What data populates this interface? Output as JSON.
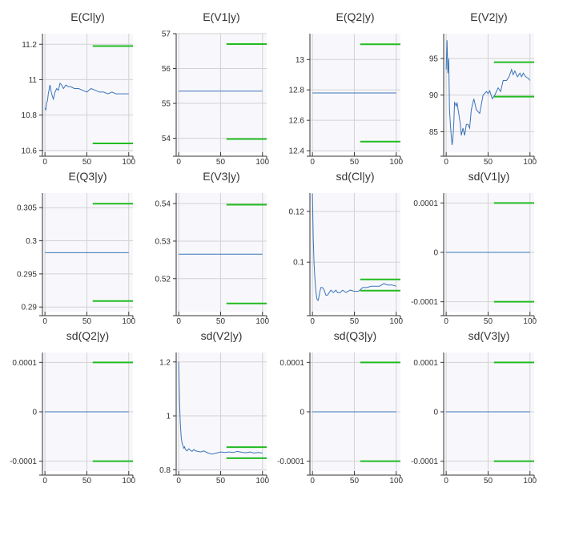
{
  "chart_data": [
    {
      "type": "line",
      "title": "E(Cl|y)",
      "xlim": [
        -3,
        105
      ],
      "ylim": [
        10.59,
        11.26
      ],
      "xticks": [
        {
          "v": 0,
          "t": "0"
        },
        {
          "v": 50,
          "t": "50"
        },
        {
          "v": 100,
          "t": "100"
        }
      ],
      "yticks": [
        {
          "v": 10.6,
          "t": "10.6"
        },
        {
          "v": 10.8,
          "t": "10.8"
        },
        {
          "v": 11,
          "t": "11"
        },
        {
          "v": 11.2,
          "t": "11.2"
        }
      ],
      "series": [
        {
          "x": [
            0,
            1,
            2,
            3,
            4,
            6,
            8,
            10,
            12,
            14,
            16,
            18,
            20,
            22,
            25,
            28,
            31,
            35,
            40,
            45,
            50,
            55,
            60,
            65,
            70,
            75,
            80,
            85,
            90,
            95,
            100
          ],
          "y": [
            10.84,
            10.83,
            10.87,
            10.88,
            10.92,
            10.97,
            10.92,
            10.89,
            10.93,
            10.95,
            10.94,
            10.98,
            10.97,
            10.95,
            10.97,
            10.96,
            10.96,
            10.95,
            10.95,
            10.94,
            10.93,
            10.95,
            10.94,
            10.93,
            10.93,
            10.92,
            10.93,
            10.92,
            10.92,
            10.92,
            10.92
          ]
        }
      ],
      "hlines": [
        {
          "x": [
            57,
            105
          ],
          "y": 11.19
        },
        {
          "x": [
            57,
            105
          ],
          "y": 10.64
        }
      ]
    },
    {
      "type": "line",
      "title": "E(V1|y)",
      "xlim": [
        -3,
        105
      ],
      "ylim": [
        53.6,
        57.0
      ],
      "xticks": [
        {
          "v": 0,
          "t": "0"
        },
        {
          "v": 50,
          "t": "50"
        },
        {
          "v": 100,
          "t": "100"
        }
      ],
      "yticks": [
        {
          "v": 54,
          "t": "54"
        },
        {
          "v": 55,
          "t": "55"
        },
        {
          "v": 56,
          "t": "56"
        },
        {
          "v": 57,
          "t": "57"
        }
      ],
      "series": [
        {
          "x": [
            0,
            100
          ],
          "y": [
            55.35,
            55.35
          ]
        }
      ],
      "hlines": [
        {
          "x": [
            57,
            105
          ],
          "y": 56.7
        },
        {
          "x": [
            57,
            105
          ],
          "y": 53.98
        }
      ]
    },
    {
      "type": "line",
      "title": "E(Q2|y)",
      "xlim": [
        -3,
        105
      ],
      "ylim": [
        12.39,
        13.17
      ],
      "xticks": [
        {
          "v": 0,
          "t": "0"
        },
        {
          "v": 50,
          "t": "50"
        },
        {
          "v": 100,
          "t": "100"
        }
      ],
      "yticks": [
        {
          "v": 12.4,
          "t": "12.4"
        },
        {
          "v": 12.6,
          "t": "12.6"
        },
        {
          "v": 12.8,
          "t": "12.8"
        },
        {
          "v": 13,
          "t": "13"
        }
      ],
      "series": [
        {
          "x": [
            0,
            100
          ],
          "y": [
            12.78,
            12.78
          ]
        }
      ],
      "hlines": [
        {
          "x": [
            57,
            105
          ],
          "y": 13.1
        },
        {
          "x": [
            57,
            105
          ],
          "y": 12.46
        }
      ]
    },
    {
      "type": "line",
      "title": "E(V2|y)",
      "xlim": [
        -3,
        105
      ],
      "ylim": [
        82.2,
        98.4
      ],
      "xticks": [
        {
          "v": 0,
          "t": "0"
        },
        {
          "v": 50,
          "t": "50"
        },
        {
          "v": 100,
          "t": "100"
        }
      ],
      "yticks": [
        {
          "v": 85,
          "t": "85"
        },
        {
          "v": 90,
          "t": "90"
        },
        {
          "v": 95,
          "t": "95"
        }
      ],
      "series": [
        {
          "x": [
            0,
            1,
            2,
            3,
            4,
            5,
            6,
            7,
            8,
            9,
            10,
            11,
            12,
            13,
            15,
            17,
            18,
            20,
            22,
            24,
            26,
            28,
            30,
            33,
            36,
            40,
            44,
            48,
            50,
            52,
            55,
            58,
            62,
            65,
            68,
            72,
            75,
            78,
            80,
            82,
            85,
            88,
            90,
            92,
            95,
            98,
            100
          ],
          "y": [
            93.5,
            97.5,
            93,
            95,
            88,
            86,
            84.5,
            83.2,
            84,
            86,
            89,
            88.8,
            88.5,
            89,
            87.5,
            86,
            84.5,
            85.5,
            84.5,
            86,
            86,
            85.5,
            88,
            89.5,
            88,
            87.5,
            90,
            90.5,
            90.2,
            90.6,
            89.5,
            90,
            91,
            90.5,
            92,
            92,
            92.5,
            93.5,
            92.8,
            93.3,
            92.5,
            93,
            92.5,
            93,
            92.5,
            92.3,
            92
          ]
        }
      ],
      "hlines": [
        {
          "x": [
            57,
            105
          ],
          "y": 94.5
        },
        {
          "x": [
            57,
            105
          ],
          "y": 89.8
        }
      ]
    },
    {
      "type": "line",
      "title": "E(Q3|y)",
      "xlim": [
        -3,
        105
      ],
      "ylim": [
        0.2893,
        0.3072
      ],
      "xticks": [
        {
          "v": 0,
          "t": "0"
        },
        {
          "v": 50,
          "t": "50"
        },
        {
          "v": 100,
          "t": "100"
        }
      ],
      "yticks": [
        {
          "v": 0.29,
          "t": "0.29"
        },
        {
          "v": 0.295,
          "t": "0.295"
        },
        {
          "v": 0.3,
          "t": "0.3"
        },
        {
          "v": 0.305,
          "t": "0.305"
        }
      ],
      "series": [
        {
          "x": [
            0,
            100
          ],
          "y": [
            0.2982,
            0.2982
          ]
        }
      ],
      "hlines": [
        {
          "x": [
            57,
            105
          ],
          "y": 0.3056
        },
        {
          "x": [
            57,
            105
          ],
          "y": 0.2909
        }
      ]
    },
    {
      "type": "line",
      "title": "E(V3|y)",
      "xlim": [
        -3,
        105
      ],
      "ylim": [
        0.5112,
        0.5428
      ],
      "xticks": [
        {
          "v": 0,
          "t": "0"
        },
        {
          "v": 50,
          "t": "50"
        },
        {
          "v": 100,
          "t": "100"
        }
      ],
      "yticks": [
        {
          "v": 0.52,
          "t": "0.52"
        },
        {
          "v": 0.53,
          "t": "0.53"
        },
        {
          "v": 0.54,
          "t": "0.54"
        }
      ],
      "series": [
        {
          "x": [
            0,
            100
          ],
          "y": [
            0.5265,
            0.5265
          ]
        }
      ],
      "hlines": [
        {
          "x": [
            57,
            105
          ],
          "y": 0.5397
        },
        {
          "x": [
            57,
            105
          ],
          "y": 0.5134
        }
      ]
    },
    {
      "type": "line",
      "title": "sd(Cl|y)",
      "xlim": [
        -3,
        105
      ],
      "ylim": [
        0.0805,
        0.1272
      ],
      "xticks": [
        {
          "v": 0,
          "t": "0"
        },
        {
          "v": 50,
          "t": "50"
        },
        {
          "v": 100,
          "t": "100"
        }
      ],
      "yticks": [
        {
          "v": 0.1,
          "t": "0.1"
        },
        {
          "v": 0.12,
          "t": "0.12"
        }
      ],
      "series": [
        {
          "x": [
            0,
            1,
            2,
            3,
            4,
            5,
            6,
            7,
            8,
            10,
            12,
            14,
            16,
            18,
            20,
            22,
            25,
            28,
            30,
            33,
            36,
            40,
            45,
            50,
            55,
            60,
            65,
            70,
            75,
            80,
            85,
            90,
            95,
            100
          ],
          "y": [
            0.127,
            0.109,
            0.099,
            0.093,
            0.089,
            0.086,
            0.085,
            0.085,
            0.087,
            0.09,
            0.09,
            0.089,
            0.087,
            0.087,
            0.088,
            0.089,
            0.088,
            0.089,
            0.088,
            0.088,
            0.089,
            0.088,
            0.089,
            0.0885,
            0.0885,
            0.09,
            0.09,
            0.0905,
            0.0905,
            0.0905,
            0.0915,
            0.091,
            0.091,
            0.0905
          ]
        }
      ],
      "hlines": [
        {
          "x": [
            57,
            105
          ],
          "y": 0.0932
        },
        {
          "x": [
            57,
            105
          ],
          "y": 0.0888
        }
      ]
    },
    {
      "type": "line",
      "title": "sd(V1|y)",
      "xlim": [
        -3,
        105
      ],
      "ylim": [
        -0.00012,
        0.00012
      ],
      "xticks": [
        {
          "v": 0,
          "t": "0"
        },
        {
          "v": 50,
          "t": "50"
        },
        {
          "v": 100,
          "t": "100"
        }
      ],
      "yticks": [
        {
          "v": -0.0001,
          "t": "-0.0001"
        },
        {
          "v": 0,
          "t": "0"
        },
        {
          "v": 0.0001,
          "t": "0.0001"
        }
      ],
      "series": [
        {
          "x": [
            0,
            100
          ],
          "y": [
            0,
            0
          ]
        }
      ],
      "hlines": [
        {
          "x": [
            57,
            105
          ],
          "y": 0.0001
        },
        {
          "x": [
            57,
            105
          ],
          "y": -0.0001
        }
      ]
    },
    {
      "type": "line",
      "title": "sd(Q2|y)",
      "xlim": [
        -3,
        105
      ],
      "ylim": [
        -0.00012,
        0.00012
      ],
      "xticks": [
        {
          "v": 0,
          "t": "0"
        },
        {
          "v": 50,
          "t": "50"
        },
        {
          "v": 100,
          "t": "100"
        }
      ],
      "yticks": [
        {
          "v": -0.0001,
          "t": "-0.0001"
        },
        {
          "v": 0,
          "t": "0"
        },
        {
          "v": 0.0001,
          "t": "0.0001"
        }
      ],
      "series": [
        {
          "x": [
            0,
            100
          ],
          "y": [
            0,
            0
          ]
        }
      ],
      "hlines": [
        {
          "x": [
            57,
            105
          ],
          "y": 0.0001
        },
        {
          "x": [
            57,
            105
          ],
          "y": -0.0001
        }
      ]
    },
    {
      "type": "line",
      "title": "sd(V2|y)",
      "xlim": [
        -3,
        105
      ],
      "ylim": [
        0.795,
        1.235
      ],
      "xticks": [
        {
          "v": 0,
          "t": "0"
        },
        {
          "v": 50,
          "t": "50"
        },
        {
          "v": 100,
          "t": "100"
        }
      ],
      "yticks": [
        {
          "v": 0.8,
          "t": "0.8"
        },
        {
          "v": 1,
          "t": "1"
        },
        {
          "v": 1.2,
          "t": "1.2"
        }
      ],
      "series": [
        {
          "x": [
            0,
            1,
            2,
            3,
            4,
            5,
            6,
            7,
            8,
            10,
            12,
            14,
            16,
            18,
            20,
            23,
            26,
            30,
            35,
            40,
            45,
            50,
            55,
            60,
            65,
            70,
            75,
            80,
            85,
            90,
            95,
            100
          ],
          "y": [
            1.2,
            1.05,
            0.97,
            0.92,
            0.9,
            0.89,
            0.88,
            0.885,
            0.875,
            0.87,
            0.878,
            0.872,
            0.868,
            0.875,
            0.87,
            0.868,
            0.866,
            0.87,
            0.862,
            0.858,
            0.862,
            0.866,
            0.864,
            0.866,
            0.864,
            0.868,
            0.865,
            0.863,
            0.866,
            0.862,
            0.864,
            0.862
          ]
        }
      ],
      "hlines": [
        {
          "x": [
            57,
            105
          ],
          "y": 0.884
        },
        {
          "x": [
            57,
            105
          ],
          "y": 0.843
        }
      ]
    },
    {
      "type": "line",
      "title": "sd(Q3|y)",
      "xlim": [
        -3,
        105
      ],
      "ylim": [
        -0.00012,
        0.00012
      ],
      "xticks": [
        {
          "v": 0,
          "t": "0"
        },
        {
          "v": 50,
          "t": "50"
        },
        {
          "v": 100,
          "t": "100"
        }
      ],
      "yticks": [
        {
          "v": -0.0001,
          "t": "-0.0001"
        },
        {
          "v": 0,
          "t": "0"
        },
        {
          "v": 0.0001,
          "t": "0.0001"
        }
      ],
      "series": [
        {
          "x": [
            0,
            100
          ],
          "y": [
            0,
            0
          ]
        }
      ],
      "hlines": [
        {
          "x": [
            57,
            105
          ],
          "y": 0.0001
        },
        {
          "x": [
            57,
            105
          ],
          "y": -0.0001
        }
      ]
    },
    {
      "type": "line",
      "title": "sd(V3|y)",
      "xlim": [
        -3,
        105
      ],
      "ylim": [
        -0.00012,
        0.00012
      ],
      "xticks": [
        {
          "v": 0,
          "t": "0"
        },
        {
          "v": 50,
          "t": "50"
        },
        {
          "v": 100,
          "t": "100"
        }
      ],
      "yticks": [
        {
          "v": -0.0001,
          "t": "-0.0001"
        },
        {
          "v": 0,
          "t": "0"
        },
        {
          "v": 0.0001,
          "t": "0.0001"
        }
      ],
      "series": [
        {
          "x": [
            0,
            100
          ],
          "y": [
            0,
            0
          ]
        }
      ],
      "hlines": [
        {
          "x": [
            57,
            105
          ],
          "y": 0.0001
        },
        {
          "x": [
            57,
            105
          ],
          "y": -0.0001
        }
      ]
    }
  ],
  "colors": {
    "series": "#3a73b8",
    "band": "#22bb22",
    "grid": "#d2d2d2",
    "background": "#f8f8fc"
  }
}
